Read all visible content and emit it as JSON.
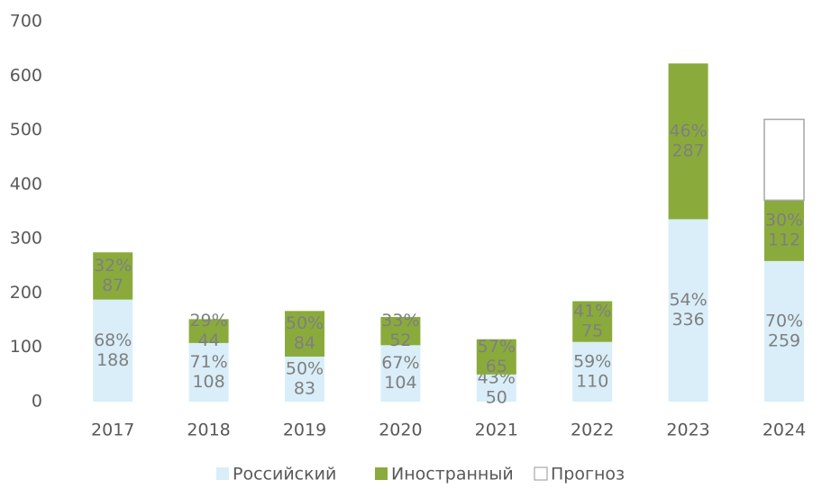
{
  "chart_data": {
    "type": "stacked_bar",
    "categories": [
      "2017",
      "2018",
      "2019",
      "2020",
      "2021",
      "2022",
      "2023",
      "2024"
    ],
    "series": [
      {
        "name": "Российский",
        "color": "#d9eef9",
        "values": [
          188,
          108,
          83,
          104,
          50,
          110,
          336,
          259
        ],
        "share_labels": [
          "68%",
          "71%",
          "50%",
          "67%",
          "43%",
          "59%",
          "54%",
          "70%"
        ]
      },
      {
        "name": "Иностранный",
        "color": "#8aab3c",
        "values": [
          87,
          44,
          84,
          52,
          65,
          75,
          287,
          112
        ],
        "share_labels": [
          "32%",
          "29%",
          "50%",
          "33%",
          "57%",
          "41%",
          "46%",
          "30%"
        ]
      },
      {
        "name": "Прогноз",
        "color": "#ffffff",
        "stroke": "#a6a6a6",
        "values": [
          null,
          null,
          null,
          null,
          null,
          null,
          null,
          149
        ]
      }
    ],
    "ylim": [
      0,
      700
    ],
    "yticks": [
      0,
      100,
      200,
      300,
      400,
      500,
      600,
      700
    ],
    "grid": false,
    "legend": "bottom"
  }
}
